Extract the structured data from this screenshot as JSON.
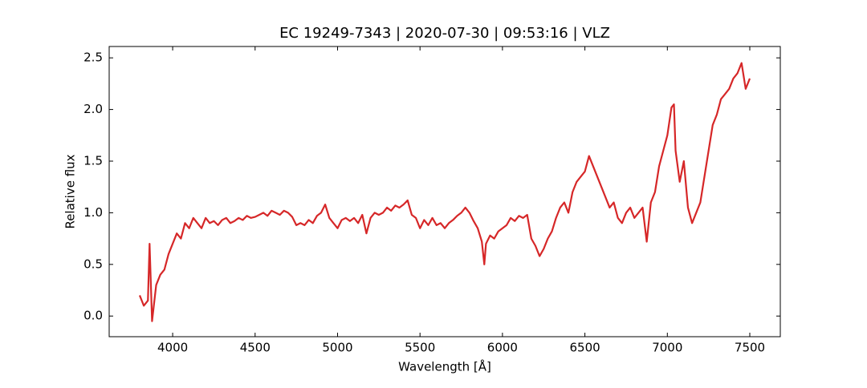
{
  "chart_data": {
    "type": "line",
    "title": "EC 19249-7343 | 2020-07-30 | 09:53:16 | VLZ",
    "x_label": "Wavelength [Å]",
    "y_label": "Relative flux",
    "x": [
      3800,
      3825,
      3850,
      3860,
      3875,
      3900,
      3925,
      3950,
      3975,
      4000,
      4025,
      4050,
      4075,
      4100,
      4125,
      4150,
      4175,
      4200,
      4225,
      4250,
      4275,
      4300,
      4325,
      4350,
      4375,
      4400,
      4425,
      4450,
      4475,
      4500,
      4525,
      4550,
      4575,
      4600,
      4625,
      4650,
      4675,
      4700,
      4725,
      4750,
      4775,
      4800,
      4825,
      4850,
      4875,
      4900,
      4925,
      4950,
      4975,
      5000,
      5025,
      5050,
      5075,
      5100,
      5125,
      5150,
      5175,
      5200,
      5225,
      5250,
      5275,
      5300,
      5325,
      5350,
      5375,
      5400,
      5425,
      5450,
      5475,
      5500,
      5525,
      5550,
      5575,
      5600,
      5625,
      5650,
      5675,
      5700,
      5725,
      5750,
      5775,
      5800,
      5825,
      5850,
      5875,
      5890,
      5900,
      5925,
      5950,
      5975,
      6000,
      6025,
      6050,
      6075,
      6100,
      6125,
      6150,
      6175,
      6200,
      6225,
      6250,
      6275,
      6300,
      6325,
      6350,
      6375,
      6400,
      6425,
      6450,
      6475,
      6500,
      6525,
      6550,
      6575,
      6600,
      6625,
      6650,
      6675,
      6700,
      6725,
      6750,
      6775,
      6800,
      6825,
      6850,
      6875,
      6900,
      6925,
      6950,
      6975,
      7000,
      7025,
      7040,
      7050,
      7075,
      7100,
      7125,
      7150,
      7175,
      7200,
      7225,
      7250,
      7275,
      7300,
      7325,
      7350,
      7375,
      7400,
      7425,
      7450,
      7475,
      7500
    ],
    "series": [
      {
        "color": "#d62728",
        "values": [
          0.2,
          0.1,
          0.15,
          0.7,
          -0.05,
          0.3,
          0.4,
          0.45,
          0.6,
          0.7,
          0.8,
          0.75,
          0.9,
          0.85,
          0.95,
          0.9,
          0.85,
          0.95,
          0.9,
          0.92,
          0.88,
          0.93,
          0.95,
          0.9,
          0.92,
          0.95,
          0.93,
          0.97,
          0.95,
          0.96,
          0.98,
          1.0,
          0.97,
          1.02,
          1.0,
          0.98,
          1.02,
          1.0,
          0.96,
          0.88,
          0.9,
          0.88,
          0.93,
          0.9,
          0.97,
          1.0,
          1.08,
          0.95,
          0.9,
          0.85,
          0.93,
          0.95,
          0.92,
          0.95,
          0.9,
          0.98,
          0.8,
          0.95,
          1.0,
          0.98,
          1.0,
          1.05,
          1.02,
          1.07,
          1.05,
          1.08,
          1.12,
          0.98,
          0.95,
          0.85,
          0.93,
          0.88,
          0.95,
          0.88,
          0.9,
          0.85,
          0.9,
          0.93,
          0.97,
          1.0,
          1.05,
          1.0,
          0.92,
          0.85,
          0.72,
          0.5,
          0.7,
          0.78,
          0.75,
          0.82,
          0.85,
          0.88,
          0.95,
          0.92,
          0.97,
          0.95,
          0.98,
          0.75,
          0.68,
          0.58,
          0.65,
          0.75,
          0.82,
          0.95,
          1.05,
          1.1,
          1.0,
          1.2,
          1.3,
          1.35,
          1.4,
          1.55,
          1.45,
          1.35,
          1.25,
          1.15,
          1.05,
          1.1,
          0.95,
          0.9,
          1.0,
          1.05,
          0.95,
          1.0,
          1.05,
          0.72,
          1.1,
          1.2,
          1.45,
          1.6,
          1.75,
          2.02,
          2.05,
          1.6,
          1.3,
          1.5,
          1.05,
          0.9,
          1.0,
          1.1,
          1.35,
          1.6,
          1.85,
          1.95,
          2.1,
          2.15,
          2.2,
          2.3,
          2.35,
          2.45,
          2.2,
          2.3
        ]
      }
    ],
    "xlim": [
      3615,
      7685
    ],
    "ylim": [
      -0.2,
      2.61
    ],
    "xticks": [
      4000,
      4500,
      5000,
      5500,
      6000,
      6500,
      7000,
      7500
    ],
    "yticks": [
      {
        "value": 0,
        "label": "0.0"
      },
      0.5,
      {
        "value": 1,
        "label": "1.0"
      },
      1.5,
      {
        "value": 2,
        "label": "2.0"
      },
      2.5
    ],
    "grid": false
  }
}
